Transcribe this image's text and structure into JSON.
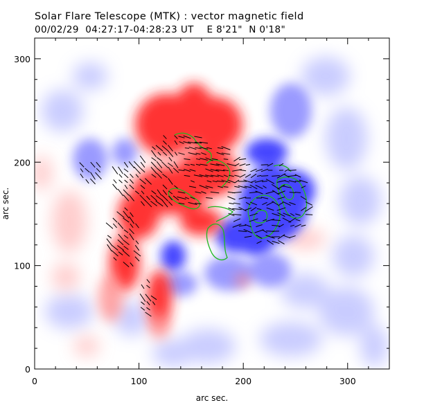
{
  "title": "Solar Flare Telescope (MTK) : vector magnetic field",
  "subtitle": "00/02/29  04:27:17-04:28:23 UT    E 8'21\"  N 0'18\"",
  "axes": {
    "xlabel": "arc sec.",
    "ylabel": "arc sec.",
    "xlim": [
      0,
      340
    ],
    "ylim": [
      0,
      320
    ],
    "xticks": [
      "0",
      "100",
      "200",
      "300"
    ],
    "yticks": [
      "0",
      "100",
      "200",
      "300"
    ]
  },
  "colors": {
    "positive": "#ff2a2a",
    "negative": "#2a2aff",
    "contour": "#22bb22",
    "vectors": "#000000"
  }
}
